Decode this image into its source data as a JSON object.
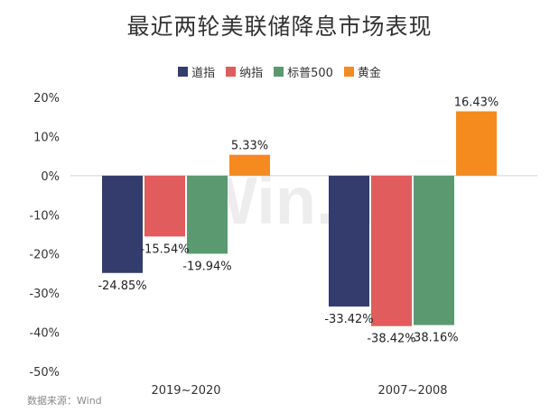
{
  "title": "最近两轮美联储降息市场表现",
  "watermark": "Win.d",
  "source": "数据来源：Wind",
  "chart_data": {
    "type": "bar",
    "categories": [
      "2019~2020",
      "2007~2008"
    ],
    "series": [
      {
        "name": "道指",
        "color": "#343c6e",
        "values": [
          -24.85,
          -33.42
        ]
      },
      {
        "name": "纳指",
        "color": "#e05c5d",
        "values": [
          -15.54,
          -38.42
        ]
      },
      {
        "name": "标普500",
        "color": "#5b9a71",
        "values": [
          -19.94,
          -38.16
        ]
      },
      {
        "name": "黄金",
        "color": "#f58a1f",
        "values": [
          5.33,
          16.43
        ]
      }
    ],
    "data_labels": [
      [
        "-24.85%",
        "-33.42%"
      ],
      [
        "-15.54%",
        "-38.42%"
      ],
      [
        "-19.94%",
        "-38.16%"
      ],
      [
        "5.33%",
        "16.43%"
      ]
    ],
    "ylim": [
      -50,
      20
    ],
    "yticks": [
      20,
      10,
      0,
      -10,
      -20,
      -30,
      -40,
      -50
    ],
    "ytick_labels": [
      "20%",
      "10%",
      "0%",
      "-10%",
      "-20%",
      "-30%",
      "-40%",
      "-50%"
    ],
    "legend_position": "top-center",
    "grid": false
  }
}
